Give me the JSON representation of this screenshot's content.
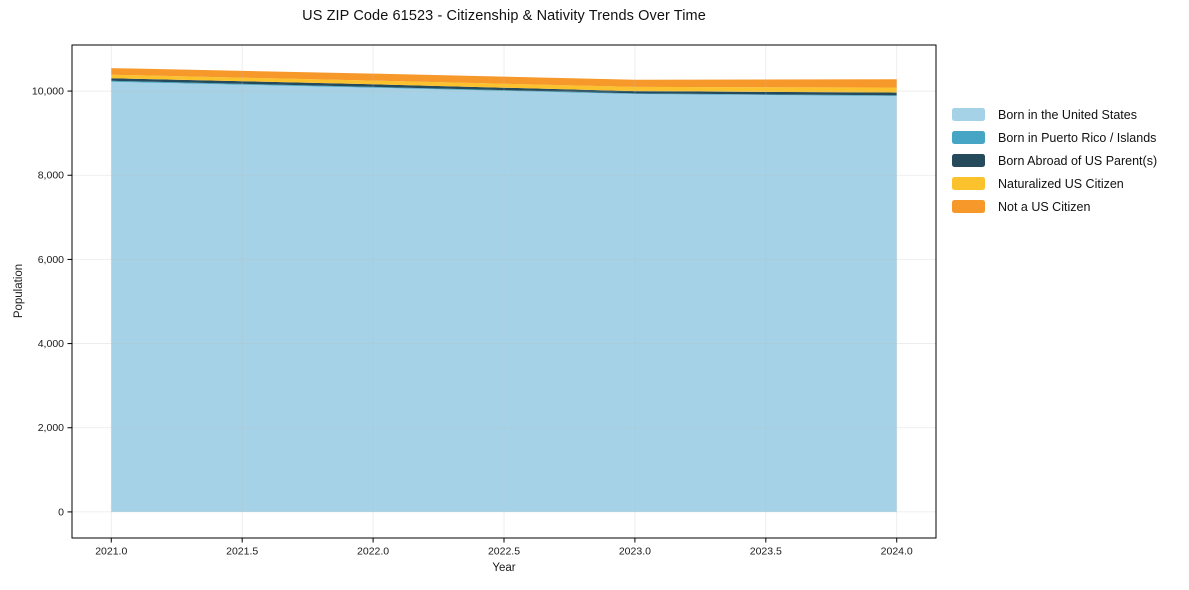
{
  "figure": {
    "background": "#ffffff"
  },
  "chart_data": {
    "type": "area",
    "stacked": true,
    "title": "US ZIP Code 61523 - Citizenship & Nativity Trends Over Time",
    "xlabel": "Year",
    "ylabel": "Population",
    "x": [
      2021,
      2022,
      2023,
      2024
    ],
    "series": [
      {
        "name": "Born in the United States",
        "color": "#a5d2e7",
        "values": [
          10220,
          10080,
          9930,
          9880
        ]
      },
      {
        "name": "Born in Puerto Rico / Islands",
        "color": "#46a5c4",
        "values": [
          25,
          20,
          15,
          20
        ]
      },
      {
        "name": "Born Abroad of US Parent(s)",
        "color": "#254a5c",
        "values": [
          60,
          60,
          55,
          65
        ]
      },
      {
        "name": "Naturalized US Citizen",
        "color": "#fcc22d",
        "values": [
          85,
          90,
          100,
          120
        ]
      },
      {
        "name": "Not a US Citizen",
        "color": "#f7982a",
        "values": [
          155,
          165,
          170,
          195
        ]
      }
    ],
    "xlim": [
      2020.85,
      2024.15
    ],
    "ylim": [
      -620,
      11095
    ],
    "x_ticks": [
      2021.0,
      2021.5,
      2022.0,
      2022.5,
      2023.0,
      2023.5,
      2024.0
    ],
    "x_tick_labels": [
      "2021.0",
      "2021.5",
      "2022.0",
      "2022.5",
      "2023.0",
      "2023.5",
      "2024.0"
    ],
    "y_ticks": [
      0,
      2000,
      4000,
      6000,
      8000,
      10000
    ],
    "y_tick_labels": [
      "0",
      "2,000",
      "4,000",
      "6,000",
      "8,000",
      "10,000"
    ],
    "grid": true,
    "grid_color": "#bdbdbd",
    "spine_color": "#000000",
    "tick_label_color": "#1a1a1a",
    "legend_position": "center-right"
  }
}
